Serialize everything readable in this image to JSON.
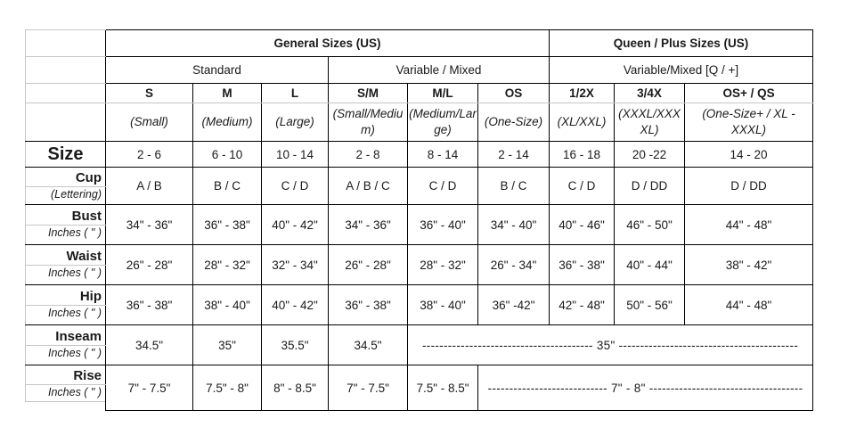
{
  "colors": {
    "border_dark": "#000000",
    "border_light": "#c6c6c6",
    "text": "#1a1a1a"
  },
  "table": {
    "group_headers": [
      {
        "label": "General Sizes (US)",
        "span": 6
      },
      {
        "label": "Queen / Plus Sizes (US)",
        "span": 3
      }
    ],
    "type_headers": [
      {
        "label": "Standard",
        "span": 3
      },
      {
        "label": "Variable / Mixed",
        "span": 3
      },
      {
        "label": "Variable/Mixed [Q / +]",
        "span": 3
      }
    ],
    "columns": [
      {
        "code": "S",
        "name": "(Small)"
      },
      {
        "code": "M",
        "name": "(Medium)"
      },
      {
        "code": "L",
        "name": "(Large)"
      },
      {
        "code": "S/M",
        "name": "(Small/Medium)"
      },
      {
        "code": "M/L",
        "name": "(Medium/Large)"
      },
      {
        "code": "OS",
        "name": "(One-Size)"
      },
      {
        "code": "1/2X",
        "name": "(XL/XXL)"
      },
      {
        "code": "3/4X",
        "name": "(XXXL/XXXXL)"
      },
      {
        "code": "OS+ / QS",
        "name": "(One-Size+ / XL - XXXL)"
      }
    ],
    "rows": [
      {
        "label": "Size",
        "unit": "",
        "cells": [
          "2 - 6",
          "6 - 10",
          "10 - 14",
          "2 - 8",
          "8 - 14",
          "2 - 14",
          "16 - 18",
          "20 -22",
          "14 - 20"
        ]
      },
      {
        "label": "Cup",
        "unit": "(Lettering)",
        "cells": [
          "A / B",
          "B / C",
          "C / D",
          "A / B / C",
          "C / D",
          "B / C",
          "C / D",
          "D / DD",
          "D / DD"
        ]
      },
      {
        "label": "Bust",
        "unit": "Inches ( \" )",
        "cells": [
          "34\" - 36\"",
          "36\" - 38\"",
          "40\" - 42\"",
          "34\" - 36\"",
          "36\" - 40\"",
          "34\" - 40\"",
          "40\" - 46\"",
          "46\" - 50\"",
          "44\" - 48\""
        ]
      },
      {
        "label": "Waist",
        "unit": "Inches ( \" )",
        "cells": [
          "26\" - 28\"",
          "28\" - 32\"",
          "32\" - 34\"",
          "26\" - 28\"",
          "28\" - 32\"",
          "26\" - 34\"",
          "36\" - 38\"",
          "40\" - 44\"",
          "38\" - 42\""
        ]
      },
      {
        "label": "Hip",
        "unit": "Inches ( \" )",
        "cells": [
          "36\" - 38\"",
          "38\" - 40\"",
          "40\" - 42\"",
          "36\" - 38\"",
          "38\" - 40\"",
          "36\" -42\"",
          "42\" - 48\"",
          "50\" - 56\"",
          "44\" - 48\""
        ]
      },
      {
        "label": "Inseam",
        "unit": "Inches ( \" )",
        "cells": [
          "34.5\"",
          "35\"",
          "35.5\"",
          "34.5\"",
          {
            "text": "---------------------------------------- 35\" ------------------------------------------",
            "span": 5
          }
        ]
      },
      {
        "label": "Rise",
        "unit": "Inches ( \" )",
        "cells": [
          "7\" - 7.5\"",
          "7.5\" - 8\"",
          "8\" - 8.5\"",
          "7\" - 7.5\"",
          "7.5\" - 8.5\"",
          {
            "text": "---------------------------- 7\" - 8\" ------------------------------------",
            "span": 4
          }
        ]
      }
    ]
  }
}
